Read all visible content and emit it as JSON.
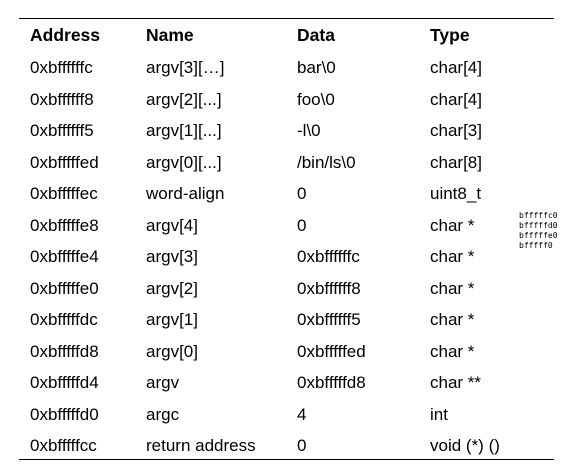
{
  "table": {
    "headers": [
      "Address",
      "Name",
      "Data",
      "Type"
    ],
    "rows": [
      [
        "0xbffffffc",
        "argv[3][…]",
        "bar\\0",
        "char[4]"
      ],
      [
        "0xbffffff8",
        "argv[2][...]",
        "foo\\0",
        "char[4]"
      ],
      [
        "0xbffffff5",
        "argv[1][...]",
        "-l\\0",
        "char[3]"
      ],
      [
        "0xbfffffed",
        "argv[0][...]",
        "/bin/ls\\0",
        "char[8]"
      ],
      [
        "0xbfffffec",
        "word-align",
        "0",
        "uint8_t"
      ],
      [
        "0xbfffffe8",
        "argv[4]",
        "0",
        "char *"
      ],
      [
        "0xbfffffe4",
        "argv[3]",
        "0xbffffffc",
        "char *"
      ],
      [
        "0xbfffffe0",
        "argv[2]",
        "0xbffffff8",
        "char *"
      ],
      [
        "0xbfffffdc",
        "argv[1]",
        "0xbffffff5",
        "char *"
      ],
      [
        "0xbfffffd8",
        "argv[0]",
        "0xbfffffed",
        "char *"
      ],
      [
        "0xbfffffd4",
        "argv",
        "0xbfffffd8",
        "char **"
      ],
      [
        "0xbfffffd0",
        "argc",
        "4",
        "int"
      ],
      [
        "0xbfffffcc",
        "return address",
        "0",
        "void (*) ()"
      ]
    ]
  },
  "side_notes": [
    "bfffffc0",
    "bfffffd0",
    "bfffffe0",
    "bfffff0"
  ]
}
